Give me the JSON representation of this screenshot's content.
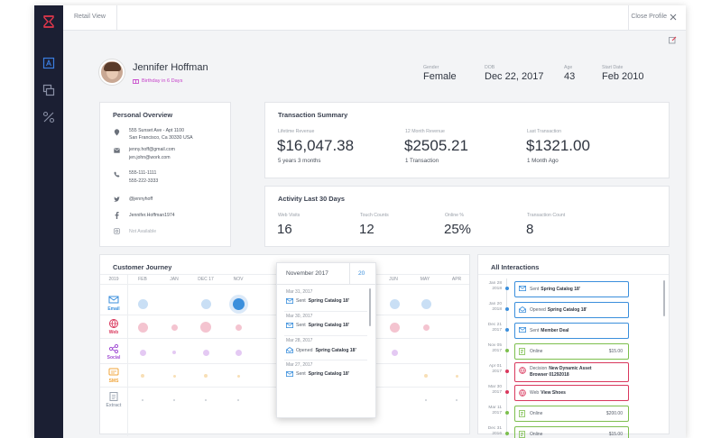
{
  "topbar": {
    "view_label": "Retail View",
    "close_label": "Close Profile"
  },
  "profile": {
    "name": "Jennifer Hoffman",
    "birthday": "Birthday in 6 Days",
    "gender_label": "Gender",
    "gender": "Female",
    "dob_label": "DOB",
    "dob": "Dec 22, 2017",
    "age_label": "Age",
    "age": "43",
    "start_label": "Start Date",
    "start": "Feb 2010"
  },
  "overview": {
    "title": "Personal Overview",
    "addr1": "555 Sunset Ave - Apt 1100",
    "addr2": "San Francisco, Ca 30330 USA",
    "email1": "jenny.hoff@gmail.com",
    "email2": "jen.john@work.com",
    "phone1": "555-111-1111",
    "phone2": "555-222-3333",
    "twitter": "@jennyhoff",
    "facebook": "Jennifer.Hoffman1974",
    "instagram": "Not Available"
  },
  "transactions": {
    "title": "Transaction Summary",
    "lifetime_label": "Lifetime Revenue",
    "lifetime": "$16,047.38",
    "lifetime_sub": "5 years 3 months",
    "month12_label": "12 Month Revenue",
    "month12": "$2505.21",
    "month12_sub": "1 Transaction",
    "last_label": "Last Transaction",
    "last": "$1321.00",
    "last_sub": "1 Month Ago"
  },
  "activity": {
    "title": "Activity Last 30 Days",
    "web_label": "Web Visits",
    "web": "16",
    "touch_label": "Touch Counts",
    "touch": "12",
    "online_label": "Online %",
    "online": "25%",
    "count_label": "Transaction Count",
    "count": "8"
  },
  "journey": {
    "title": "Customer Journey",
    "year": "2019",
    "months": [
      "FEB",
      "JAN",
      "DEC 17",
      "NOV",
      "",
      "",
      "",
      "JUL",
      "JUN",
      "",
      "MAY",
      "APR"
    ],
    "channels": [
      "Email",
      "Web",
      "Social",
      "SMS",
      "Extract"
    ],
    "colors": {
      "email": "#3b8fdc",
      "web": "#d9385d",
      "social": "#a24fd4",
      "sms": "#f0a43a",
      "extract": "#9aa3b0"
    }
  },
  "popup": {
    "month": "November 2017",
    "count": "20",
    "items": [
      {
        "date": "Mar 31, 2017",
        "verb": "Sent",
        "target": "Spring Catalog 18'"
      },
      {
        "date": "Mar 30, 2017",
        "verb": "Sent",
        "target": "Spring Catalog 18'"
      },
      {
        "date": "Mar 28, 2017",
        "verb": "Opened",
        "target": "Spring Catalog 18'"
      },
      {
        "date": "Mar 27, 2017",
        "verb": "Sent",
        "target": "Spring Catalog 18'"
      }
    ]
  },
  "interactions": {
    "title": "All Interactions",
    "items": [
      {
        "d1": "Jan 28",
        "d2": "2018",
        "verb": "Sent",
        "target": "Spring Catalog 18'",
        "amount": "",
        "color": "#3b8fdc",
        "icon": "email-icon"
      },
      {
        "d1": "Jan 20",
        "d2": "2018",
        "verb": "Opened",
        "target": "Spring Catalog 18'",
        "amount": "",
        "color": "#3b8fdc",
        "icon": "open-email-icon"
      },
      {
        "d1": "Dec 21",
        "d2": "2017",
        "verb": "Sent",
        "target": "Member Deal",
        "amount": "",
        "color": "#3b8fdc",
        "icon": "email-icon"
      },
      {
        "d1": "Nov 05",
        "d2": "2017",
        "verb": "Online",
        "target": "",
        "amount": "$15.00",
        "color": "#7cbf4d",
        "icon": "receipt-icon"
      },
      {
        "d1": "Apr 01",
        "d2": "2017",
        "verb": "Decision",
        "target": "New Dynamic Asset",
        "target2": "Browser 01292018",
        "amount": "",
        "color": "#d9385d",
        "icon": "globe-icon"
      },
      {
        "d1": "Mar 30",
        "d2": "2017",
        "verb": "Web",
        "target": "View Shoes",
        "amount": "",
        "color": "#d9385d",
        "icon": "globe-icon"
      },
      {
        "d1": "Mar 11",
        "d2": "2017",
        "verb": "Online",
        "target": "",
        "amount": "$200.00",
        "color": "#7cbf4d",
        "icon": "receipt-icon"
      },
      {
        "d1": "Dec 31",
        "d2": "2016",
        "verb": "Online",
        "target": "",
        "amount": "$15.00",
        "color": "#7cbf4d",
        "icon": "receipt-icon"
      }
    ]
  },
  "icons": {
    "logo": "hourglass-logo-icon",
    "rail": [
      "profile-icon",
      "layers-icon",
      "percent-icon"
    ]
  }
}
